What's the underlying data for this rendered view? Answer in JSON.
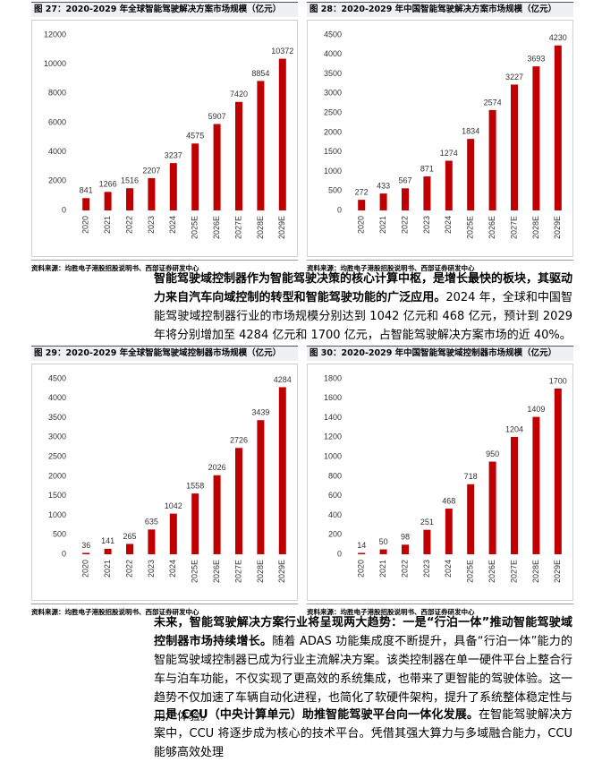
{
  "chart_data": [
    {
      "type": "bar",
      "title": "图 27：2020-2029 年全球智能驾驶解决方案市场规模（亿元）",
      "source": "资料来源：均胜电子港股招股说明书、西部证券研发中心",
      "categories": [
        "2020",
        "2021",
        "2022",
        "2023",
        "2024",
        "2025E",
        "2026E",
        "2027E",
        "2028E",
        "2029E"
      ],
      "values": [
        841,
        1266,
        1516,
        2207,
        3237,
        4575,
        5907,
        7420,
        8854,
        10372
      ],
      "color": "#c00000",
      "ylim": [
        0,
        12000
      ],
      "yticks": [
        0,
        2000,
        4000,
        6000,
        8000,
        10000,
        12000
      ]
    },
    {
      "type": "bar",
      "title": "图 28：2020-2029 年中国智能驾驶解决方案市场规模（亿元）",
      "source": "资料来源：均胜电子港股招股说明书、西部证券研发中心",
      "categories": [
        "2020",
        "2021",
        "2022",
        "2023",
        "2024",
        "2025E",
        "2026E",
        "2027E",
        "2028E",
        "2029E"
      ],
      "values": [
        272,
        433,
        567,
        871,
        1274,
        1834,
        2574,
        3227,
        3693,
        4230
      ],
      "color": "#c00000",
      "ylim": [
        0,
        4500
      ],
      "yticks": [
        0,
        500,
        1000,
        1500,
        2000,
        2500,
        3000,
        3500,
        4000,
        4500
      ]
    },
    {
      "type": "bar",
      "title": "图 29：2020-2029 年全球智能驾驶域控制器市场规模（亿元）",
      "source": "资料来源：均胜电子港股招股说明书、西部证券研发中心",
      "categories": [
        "2020",
        "2021",
        "2022",
        "2023",
        "2024",
        "2025E",
        "2026E",
        "2027E",
        "2028E",
        "2029E"
      ],
      "values": [
        36,
        141,
        265,
        635,
        1042,
        1558,
        2026,
        2726,
        3439,
        4284
      ],
      "color": "#c00000",
      "ylim": [
        0,
        4500
      ],
      "yticks": [
        0,
        500,
        1000,
        1500,
        2000,
        2500,
        3000,
        3500,
        4000,
        4500
      ]
    },
    {
      "type": "bar",
      "title": "图 30：2020-2029 年中国智能驾驶域控制器市场规模（亿元）",
      "source": "资料来源：均胜电子港股招股说明书、西部证券研发中心",
      "categories": [
        "2020",
        "2021",
        "2022",
        "2023",
        "2024",
        "2025E",
        "2026E",
        "2027E",
        "2028E",
        "2029E"
      ],
      "values": [
        14,
        50,
        98,
        251,
        468,
        718,
        950,
        1204,
        1409,
        1700
      ],
      "color": "#c00000",
      "ylim": [
        0,
        1800
      ],
      "yticks": [
        0,
        200,
        400,
        600,
        800,
        1000,
        1200,
        1400,
        1600,
        1800
      ]
    }
  ],
  "paragraphs": [
    {
      "bold": "智能驾驶域控制器作为智能驾驶决策的核心计算中枢，是增长最快的板块，其驱动力来自汽车向域控制的转型和智能驾驶功能的广泛应用。",
      "text": "2024 年，全球和中国智能驾驶域控制器行业的市场规模分别达到 1042 亿元和 468 亿元，预计到 2029 年将分别增加至 4284 亿元和 1700 亿元，占智能驾驶解决方案市场的近 40%。"
    },
    {
      "bold": "未来，智能驾驶解决方案行业将呈现两大趋势：一是“行泊一体”推动智能驾驶域控制器市场持续增长。",
      "text": "随着 ADAS 功能集成度不断提升，具备“行泊一体”能力的智能驾驶域控制器已成为行业主流解决方案。该类控制器在单一硬件平台上整合行车与泊车功能，不仅实现了更高效的系统集成，也带来了更智能的驾驶体验。这一趋势不仅加速了车辆自动化进程，也简化了软硬件架构，提升了系统整体稳定性与用户体验。"
    },
    {
      "bold": "二是 CCU（中央计算单元）助推智能驾驶平台向一体化发展。",
      "text": "在智能驾驶解决方案中，CCU 将逐步成为核心的技术平台。凭借其强大算力与多域融合能力，CCU 能够高效处理"
    }
  ]
}
